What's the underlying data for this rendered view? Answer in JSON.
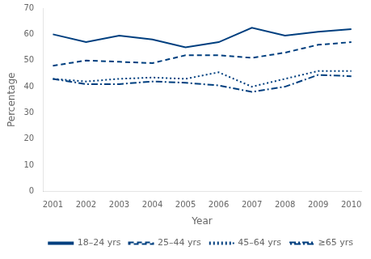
{
  "chart_data": {
    "type": "line",
    "x": [
      2001,
      2002,
      2003,
      2004,
      2005,
      2006,
      2007,
      2008,
      2009,
      2010
    ],
    "series": [
      {
        "name": "18–24 yrs",
        "color": "#003f7f",
        "line_style": "solid",
        "values": [
          60,
          57,
          59.5,
          58,
          55,
          57,
          62.5,
          59.5,
          61,
          62
        ]
      },
      {
        "name": "25–44 yrs",
        "color": "#003f7f",
        "line_style": "dashed",
        "values": [
          48,
          50,
          49.5,
          49,
          52,
          52,
          51,
          53,
          56,
          57
        ]
      },
      {
        "name": "45–64 yrs",
        "color": "#003f7f",
        "line_style": "dotted",
        "values": [
          43,
          42,
          43,
          43.5,
          43,
          45.5,
          40,
          43,
          46,
          46
        ]
      },
      {
        "name": "≥65 yrs",
        "color": "#003f7f",
        "line_style": "dashdot",
        "values": [
          43,
          41,
          41,
          42,
          41.5,
          40.5,
          38,
          40,
          44.5,
          44
        ]
      }
    ],
    "xlabel": "Year",
    "ylabel": "Percentage",
    "xlim": [
      2000.7,
      2010.3
    ],
    "xticks": [
      2001,
      2002,
      2003,
      2004,
      2005,
      2006,
      2007,
      2008,
      2009,
      2010
    ],
    "ylim": [
      0,
      70
    ],
    "yticks": [
      0,
      10,
      20,
      30,
      40,
      50,
      60,
      70
    ],
    "legend": "lower right",
    "grid": false
  }
}
